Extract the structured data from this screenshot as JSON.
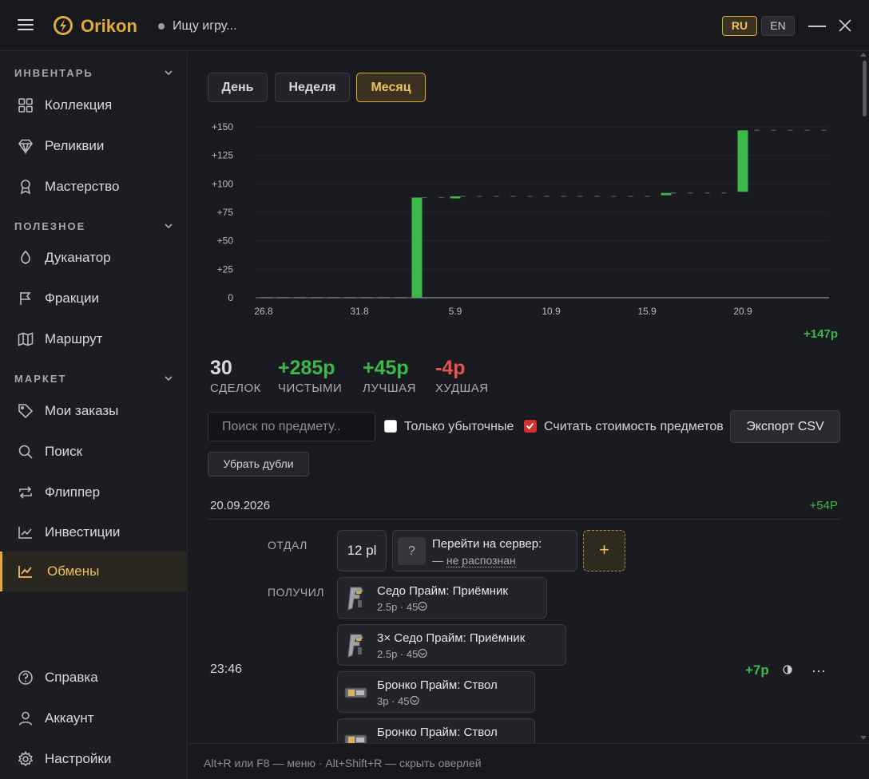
{
  "titlebar": {
    "app_name": "Orikon",
    "search_placeholder": "Ищу игру...",
    "lang_ru": "RU",
    "lang_en": "EN",
    "colors": {
      "accent": "#e0a93c"
    }
  },
  "sidebar": {
    "sections": [
      {
        "title": "ИНВЕНТАРЬ",
        "items": [
          {
            "label": "Коллекция",
            "icon": "grid-icon"
          },
          {
            "label": "Реликвии",
            "icon": "diamond-icon"
          },
          {
            "label": "Мастерство",
            "icon": "award-icon"
          }
        ]
      },
      {
        "title": "ПОЛЕЗНОЕ",
        "items": [
          {
            "label": "Дуканатор",
            "icon": "drop-icon"
          },
          {
            "label": "Фракции",
            "icon": "flag-icon"
          },
          {
            "label": "Маршрут",
            "icon": "map-icon"
          }
        ]
      },
      {
        "title": "МАРКЕТ",
        "items": [
          {
            "label": "Мои заказы",
            "icon": "tag-icon"
          },
          {
            "label": "Поиск",
            "icon": "search-icon"
          },
          {
            "label": "Флиппер",
            "icon": "repeat-icon"
          },
          {
            "label": "Инвестиции",
            "icon": "invest-icon"
          },
          {
            "label": "Обмены",
            "icon": "trend-icon",
            "active": true
          }
        ]
      }
    ],
    "bottom": [
      {
        "label": "Справка",
        "icon": "help-icon"
      },
      {
        "label": "Аккаунт",
        "icon": "user-icon"
      },
      {
        "label": "Настройки",
        "icon": "gear-icon"
      }
    ]
  },
  "tabs": [
    {
      "label": "День"
    },
    {
      "label": "Неделя"
    },
    {
      "label": "Месяц",
      "active": true
    }
  ],
  "chart_data": {
    "type": "bar",
    "subtype": "waterfall",
    "x_tick_labels": [
      "26.8",
      "31.8",
      "5.9",
      "10.9",
      "15.9",
      "20.9"
    ],
    "y_tick_labels": [
      "0",
      "+25",
      "+50",
      "+75",
      "+100",
      "+125",
      "+150"
    ],
    "ylim": [
      0,
      150
    ],
    "colors": {
      "gain": "#3cb84a"
    },
    "bars": [
      {
        "from": 0,
        "to": 88
      },
      {
        "from": 88,
        "to": 89
      },
      {
        "from": 90,
        "to": 92
      },
      {
        "from": 93,
        "to": 147
      }
    ],
    "total_label": "+147р"
  },
  "stats": {
    "deals": {
      "value": "30",
      "label": "СДЕЛОК"
    },
    "net": {
      "value": "+285р",
      "label": "ЧИСТЫМИ"
    },
    "best": {
      "value": "+45р",
      "label": "ЛУЧШАЯ"
    },
    "worst": {
      "value": "-4р",
      "label": "ХУДШАЯ"
    }
  },
  "filters": {
    "search_placeholder": "Поиск по предмету..",
    "only_loss_label": "Только убыточные",
    "only_loss_checked": false,
    "count_items_label": "Считать стоимость предметов",
    "count_items_checked": true,
    "export_label": "Экспорт CSV",
    "dedupe_label": "Убрать дубли"
  },
  "day": {
    "date": "20.09.2026",
    "total": "+54Р",
    "trade": {
      "gave_label": "ОТДАЛ",
      "received_label": "ПОЛУЧИЛ",
      "plat": "12 pl",
      "server_icon": "?",
      "server_title": "Перейти на сервер:",
      "server_dash": "—",
      "server_status": "не распознан",
      "add_label": "+",
      "time": "23:46",
      "delta": "+7р",
      "more": "⋯",
      "received": [
        {
          "name": "Седо Прайм: Приёмник",
          "price": "2.5р",
          "mastery": "45",
          "thumb": "receiver-icon"
        },
        {
          "name": "3× Седо Прайм: Приёмник",
          "price": "2.5р",
          "mastery": "45",
          "thumb": "receiver-icon"
        },
        {
          "name": "Бронко Прайм: Ствол",
          "price": "3р",
          "mastery": "45",
          "thumb": "barrel-icon"
        },
        {
          "name": "Бронко Прайм: Ствол",
          "price": "",
          "mastery": "",
          "thumb": "barrel-icon"
        }
      ]
    }
  },
  "footer": {
    "hint": "Alt+R или F8 — меню · Alt+Shift+R — скрыть оверлей"
  }
}
